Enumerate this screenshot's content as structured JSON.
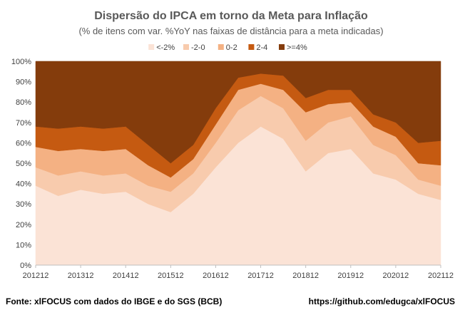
{
  "chart_data": {
    "type": "area",
    "stacked": true,
    "title": "Dispersão do IPCA em torno da Meta para Inflação",
    "subtitle": "(% de itens com var. %YoY nas faixas de distância para a meta indicadas)",
    "xlabel": "",
    "ylabel": "",
    "ylim": [
      0,
      100
    ],
    "yticks": [
      "0%",
      "10%",
      "20%",
      "30%",
      "40%",
      "50%",
      "60%",
      "70%",
      "80%",
      "90%",
      "100%"
    ],
    "xticks": [
      "201212",
      "201312",
      "201412",
      "201512",
      "201612",
      "201712",
      "201812",
      "201912",
      "202012",
      "202112"
    ],
    "grid": true,
    "legend_position": "top",
    "x": [
      "201212",
      "201306",
      "201312",
      "201406",
      "201412",
      "201506",
      "201512",
      "201606",
      "201612",
      "201706",
      "201712",
      "201806",
      "201812",
      "201906",
      "201912",
      "202006",
      "202012",
      "202106",
      "202112"
    ],
    "series": [
      {
        "name": "<-2%",
        "color": "#fbe3d6",
        "values": [
          39,
          34,
          37,
          35,
          36,
          30,
          26,
          35,
          48,
          60,
          68,
          62,
          46,
          55,
          57,
          45,
          42,
          35,
          32
        ]
      },
      {
        "name": "-2-0",
        "color": "#f8cbad",
        "values": [
          9,
          10,
          9,
          9,
          9,
          9,
          10,
          10,
          12,
          16,
          15,
          15,
          15,
          15,
          16,
          14,
          12,
          7,
          7
        ]
      },
      {
        "name": "0-2",
        "color": "#f4b183",
        "values": [
          10,
          12,
          11,
          12,
          12,
          10,
          7,
          7,
          9,
          10,
          6,
          9,
          14,
          9,
          7,
          9,
          9,
          8,
          10
        ]
      },
      {
        "name": "2-4",
        "color": "#c55a11",
        "values": [
          10,
          11,
          11,
          11,
          11,
          10,
          7,
          7,
          8,
          6,
          5,
          7,
          7,
          7,
          6,
          6,
          7,
          10,
          12
        ]
      },
      {
        "name": ">=4%",
        "color": "#843c0c",
        "values": [
          32,
          33,
          32,
          33,
          32,
          41,
          50,
          41,
          23,
          8,
          6,
          7,
          18,
          14,
          14,
          26,
          30,
          40,
          39
        ]
      }
    ]
  },
  "footer": {
    "source": "Fonte: xlFOCUS com dados do IBGE e do SGS (BCB)",
    "link": "https://github.com/edugca/xlFOCUS"
  }
}
